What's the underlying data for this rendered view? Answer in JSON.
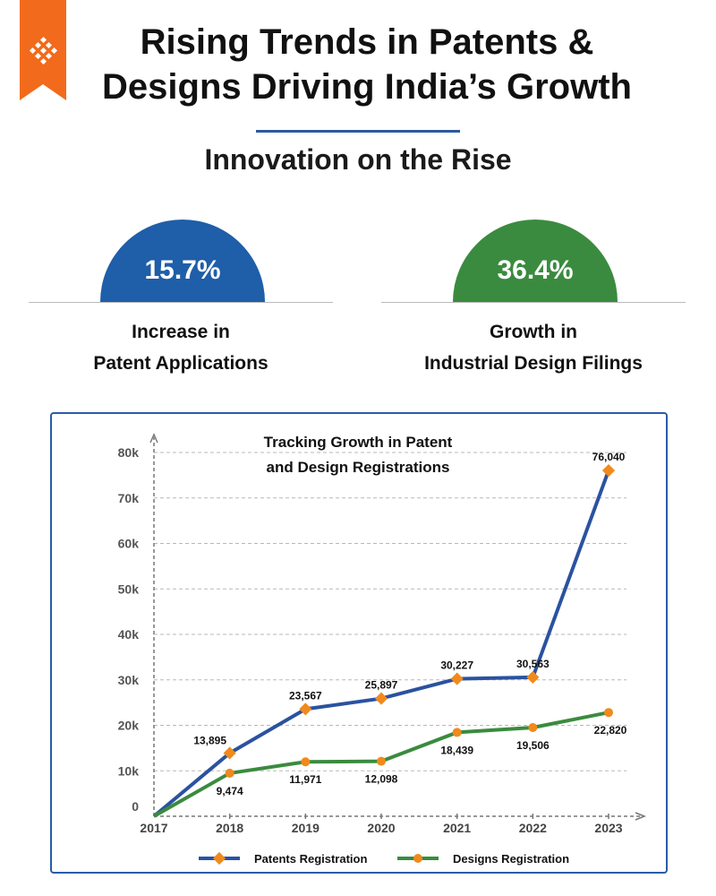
{
  "header": {
    "title_line1": "Rising Trends in Patents &",
    "title_line2": "Designs Driving India’s Growth",
    "subtitle": "Innovation on the Rise"
  },
  "stats": [
    {
      "value": "15.7%",
      "label_line1": "Increase in",
      "label_line2": "Patent Applications",
      "color": "#1f5ea8"
    },
    {
      "value": "36.4%",
      "label_line1": "Growth in",
      "label_line2": "Industrial Design Filings",
      "color": "#3a8b3f"
    }
  ],
  "chart_title": {
    "line1": "Tracking Growth in Patent",
    "line2": "and Design Registrations"
  },
  "legend": {
    "patents": "Patents Registration",
    "designs": "Designs Registration"
  },
  "colors": {
    "patents": "#2a52a0",
    "designs": "#3a8b3f",
    "marker": "#f08a1c",
    "ribbon": "#f26a1b"
  },
  "chart_data": {
    "type": "line",
    "title": "Tracking Growth in Patent and Design Registrations",
    "x": [
      "2017",
      "2018",
      "2019",
      "2020",
      "2021",
      "2022",
      "2023"
    ],
    "ylim": [
      0,
      80000
    ],
    "yticks": [
      0,
      10000,
      20000,
      30000,
      40000,
      50000,
      60000,
      70000,
      80000
    ],
    "ytick_labels": [
      "0",
      "10k",
      "20k",
      "30k",
      "40k",
      "50k",
      "60k",
      "70k",
      "80k"
    ],
    "grid": true,
    "legend_position": "bottom",
    "series": [
      {
        "name": "Patents Registration",
        "values": [
          0,
          13895,
          23567,
          25897,
          30227,
          30563,
          76040
        ],
        "labels": [
          "",
          "13,895",
          "23,567",
          "25,897",
          "30,227",
          "30,563",
          "76,040"
        ],
        "marker": "diamond"
      },
      {
        "name": "Designs Registration",
        "values": [
          0,
          9474,
          11971,
          12098,
          18439,
          19506,
          22820
        ],
        "labels": [
          "",
          "9,474",
          "11,971",
          "12,098",
          "18,439",
          "19,506",
          "22,820"
        ],
        "marker": "circle"
      }
    ]
  }
}
